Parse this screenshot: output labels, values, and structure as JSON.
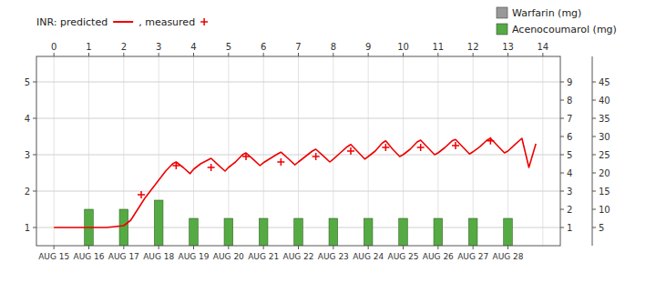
{
  "chart_data": {
    "type": "line",
    "xlim": [
      -0.5,
      14.5
    ],
    "xticks": [
      0,
      1,
      2,
      3,
      4,
      5,
      6,
      7,
      8,
      9,
      10,
      11,
      12,
      13,
      14
    ],
    "x2ticks": [
      {
        "value": 0,
        "label": "AUG 15"
      },
      {
        "value": 1,
        "label": "AUG 16"
      },
      {
        "value": 2,
        "label": "AUG 17"
      },
      {
        "value": 3,
        "label": "AUG 18"
      },
      {
        "value": 4,
        "label": "AUG 19"
      },
      {
        "value": 5,
        "label": "AUG 20"
      },
      {
        "value": 6,
        "label": "AUG 21"
      },
      {
        "value": 7,
        "label": "AUG 22"
      },
      {
        "value": 8,
        "label": "AUG 23"
      },
      {
        "value": 9,
        "label": "AUG 24"
      },
      {
        "value": 10,
        "label": "AUG 25"
      },
      {
        "value": 11,
        "label": "AUG 26"
      },
      {
        "value": 12,
        "label": "AUG 27"
      },
      {
        "value": 13,
        "label": "AUG 28"
      }
    ],
    "ylim": [
      0.5,
      5.7
    ],
    "yticks": [
      1,
      2,
      3,
      4,
      5
    ],
    "y2lim": [
      0,
      52
    ],
    "y2ticks": [
      5,
      10,
      15,
      20,
      25,
      30,
      35,
      40,
      45
    ],
    "y3lim": [
      0,
      10.4
    ],
    "y3ticks": [
      1,
      2,
      3,
      4,
      5,
      6,
      7,
      8,
      9
    ],
    "grid": true,
    "series": [
      {
        "name": "INR: predicted",
        "type": "line",
        "color": "#ee0000",
        "x": [
          0.0,
          0.5,
          1.0,
          1.5,
          2.0,
          2.2,
          2.4,
          2.6,
          2.8,
          3.0,
          3.2,
          3.4,
          3.5,
          3.7,
          3.9,
          4.0,
          4.2,
          4.4,
          4.5,
          4.7,
          4.9,
          5.0,
          5.2,
          5.4,
          5.5,
          5.7,
          5.9,
          6.0,
          6.2,
          6.4,
          6.5,
          6.7,
          6.9,
          7.0,
          7.2,
          7.4,
          7.5,
          7.7,
          7.9,
          8.0,
          8.2,
          8.4,
          8.5,
          8.7,
          8.9,
          9.0,
          9.2,
          9.4,
          9.5,
          9.7,
          9.9,
          10.0,
          10.2,
          10.4,
          10.5,
          10.7,
          10.9,
          11.0,
          11.2,
          11.4,
          11.5,
          11.7,
          11.9,
          12.0,
          12.2,
          12.4,
          12.5,
          12.7,
          12.9,
          13.0,
          13.2,
          13.4,
          13.6,
          13.8
        ],
        "values": [
          1.0,
          1.0,
          1.0,
          1.0,
          1.05,
          1.2,
          1.5,
          1.8,
          2.05,
          2.3,
          2.55,
          2.75,
          2.8,
          2.65,
          2.48,
          2.6,
          2.75,
          2.85,
          2.9,
          2.72,
          2.55,
          2.65,
          2.8,
          3.0,
          3.05,
          2.88,
          2.7,
          2.78,
          2.9,
          3.02,
          3.07,
          2.9,
          2.72,
          2.8,
          2.95,
          3.1,
          3.15,
          2.98,
          2.8,
          2.88,
          3.05,
          3.22,
          3.28,
          3.08,
          2.88,
          2.95,
          3.1,
          3.32,
          3.38,
          3.15,
          2.95,
          3.0,
          3.15,
          3.35,
          3.4,
          3.2,
          3.0,
          3.05,
          3.2,
          3.38,
          3.42,
          3.22,
          3.02,
          3.08,
          3.22,
          3.4,
          3.45,
          3.25,
          3.05,
          3.1,
          3.28,
          3.45,
          2.65,
          3.3
        ]
      },
      {
        "name": ", measured",
        "type": "scatter",
        "marker": "plus",
        "color": "#ee0000",
        "x": [
          2.5,
          3.5,
          4.5,
          5.5,
          6.5,
          7.5,
          8.5,
          9.5,
          10.5,
          11.5,
          12.5
        ],
        "values": [
          1.9,
          2.7,
          2.65,
          2.95,
          2.8,
          2.95,
          3.1,
          3.2,
          3.2,
          3.25,
          3.38
        ]
      },
      {
        "name": "Warfarin (mg)",
        "type": "bar",
        "axis": "y3",
        "color": "#999999",
        "x": [
          1,
          2,
          3,
          4,
          5,
          6,
          7,
          8,
          9,
          10,
          11,
          12,
          13
        ],
        "values": [
          null,
          null,
          null,
          null,
          null,
          null,
          null,
          null,
          null,
          null,
          null,
          null,
          null
        ]
      },
      {
        "name": "Acenocoumarol (mg)",
        "type": "bar",
        "axis": "y2",
        "color": "#55aa44",
        "x": [
          1,
          2,
          3,
          4,
          5,
          6,
          7,
          8,
          9,
          10,
          11,
          12,
          13
        ],
        "values": [
          10,
          10,
          12.5,
          7.5,
          7.5,
          7.5,
          7.5,
          7.5,
          7.5,
          7.5,
          7.5,
          7.5,
          7.5
        ]
      }
    ]
  }
}
